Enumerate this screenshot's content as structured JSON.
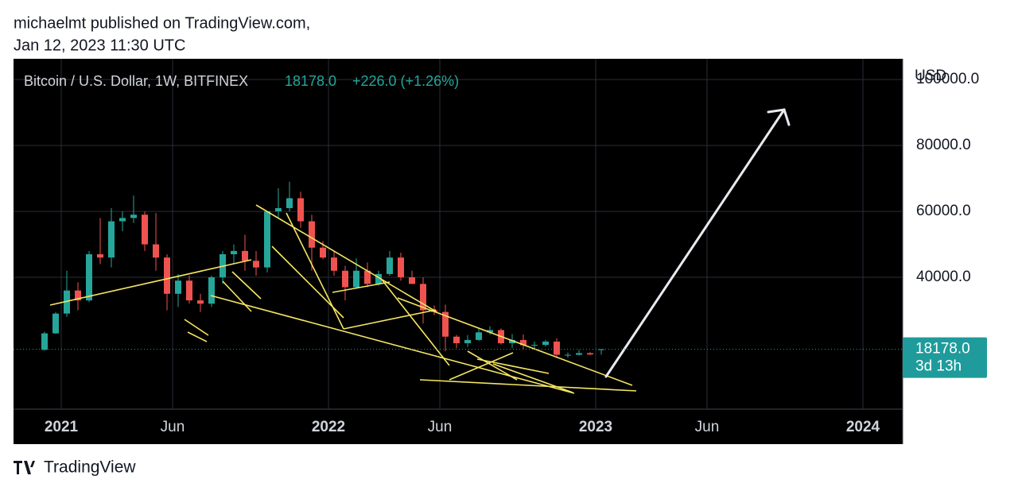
{
  "header": {
    "author_line": "michaelmt published on TradingView.com,",
    "date_line": "Jan 12, 2023 11:30 UTC"
  },
  "footer": {
    "brand": "TradingView"
  },
  "chart_data": {
    "type": "candlestick",
    "symbol": "Bitcoin / U.S. Dollar, 1W, BITFINEX",
    "last_price": {
      "value": 18178,
      "label": "18178.0"
    },
    "change": "+226.0 (+1.26%)",
    "countdown": "3d 13h",
    "currency": "USD",
    "up_color": "#26a69a",
    "down_color": "#ef5350",
    "grid": true,
    "x": [
      "2020-12",
      "2020-12",
      "2021-01",
      "2021-01",
      "2021-02",
      "2021-02",
      "2021-03",
      "2021-03",
      "2021-04",
      "2021-04",
      "2021-05",
      "2021-05",
      "2021-06",
      "2021-06",
      "2021-07",
      "2021-07",
      "2021-08",
      "2021-08",
      "2021-09",
      "2021-09",
      "2021-10",
      "2021-10",
      "2021-11",
      "2021-11",
      "2021-12",
      "2021-12",
      "2022-01",
      "2022-01",
      "2022-02",
      "2022-02",
      "2022-03",
      "2022-03",
      "2022-04",
      "2022-04",
      "2022-05",
      "2022-05",
      "2022-06",
      "2022-06",
      "2022-07",
      "2022-07",
      "2022-08",
      "2022-08",
      "2022-09",
      "2022-09",
      "2022-10",
      "2022-10",
      "2022-11",
      "2022-11",
      "2022-12",
      "2022-12",
      "2023-01"
    ],
    "open": [
      18000,
      23000,
      29000,
      36000,
      33000,
      47000,
      46000,
      57000,
      58000,
      59000,
      50000,
      46000,
      35000,
      39000,
      33000,
      32000,
      40000,
      47000,
      48000,
      45000,
      43000,
      60000,
      61000,
      64000,
      57000,
      49000,
      46000,
      42000,
      37000,
      42000,
      38000,
      41000,
      46000,
      40000,
      38000,
      30000,
      29500,
      22000,
      20000,
      21000,
      23300,
      24000,
      20000,
      21000,
      19400,
      19500,
      20500,
      16500,
      16500,
      17000,
      17952
    ],
    "high": [
      23500,
      29500,
      42000,
      38500,
      48000,
      58000,
      61000,
      60000,
      64800,
      60000,
      59500,
      47000,
      41000,
      40500,
      35000,
      40500,
      48000,
      50000,
      52900,
      48000,
      60000,
      67000,
      69000,
      66000,
      59000,
      51000,
      48000,
      43500,
      45800,
      44500,
      42000,
      48000,
      47500,
      42000,
      40000,
      31500,
      31700,
      22500,
      22500,
      24600,
      25200,
      24500,
      22800,
      22700,
      20500,
      21000,
      21500,
      17200,
      18000,
      17300,
      18300
    ],
    "low": [
      17800,
      22800,
      28000,
      30000,
      32500,
      44000,
      43000,
      54000,
      56500,
      48000,
      42000,
      30000,
      31000,
      32000,
      29500,
      31000,
      38000,
      44000,
      42000,
      40500,
      41500,
      58000,
      60000,
      55000,
      42000,
      45500,
      40500,
      33000,
      36500,
      37000,
      37500,
      40500,
      39000,
      38000,
      26000,
      28500,
      17600,
      18500,
      18900,
      20700,
      22600,
      19600,
      18500,
      18200,
      18200,
      19000,
      15500,
      15600,
      16300,
      16400,
      16500
    ],
    "close": [
      23000,
      29000,
      36000,
      33000,
      47000,
      46000,
      57000,
      58000,
      59000,
      50000,
      46000,
      35000,
      39000,
      33000,
      32000,
      40000,
      47000,
      48000,
      45000,
      43000,
      60000,
      61000,
      64000,
      57000,
      49000,
      46000,
      42000,
      37000,
      42000,
      38000,
      41000,
      46000,
      40000,
      38000,
      30000,
      29500,
      22000,
      20000,
      21000,
      23300,
      24000,
      20000,
      21000,
      19400,
      19500,
      20500,
      16500,
      16500,
      17000,
      16600,
      18178
    ],
    "ylim": [
      0,
      106300
    ],
    "yticks": [
      {
        "value": 40000,
        "label": "40000.0"
      },
      {
        "value": 60000,
        "label": "60000.0"
      },
      {
        "value": 80000,
        "label": "80000.0"
      },
      {
        "value": 100000,
        "label": "100000.0"
      }
    ],
    "xticks": [
      {
        "value": "2021-01",
        "label": "2021"
      },
      {
        "value": "2021-06",
        "label": "Jun"
      },
      {
        "value": "2022-01",
        "label": "2022"
      },
      {
        "value": "2022-06",
        "label": "Jun"
      },
      {
        "value": "2023-01",
        "label": "2023"
      },
      {
        "value": "2023-06",
        "label": "Jun"
      },
      {
        "value": "2024-01",
        "label": "2024"
      }
    ]
  }
}
